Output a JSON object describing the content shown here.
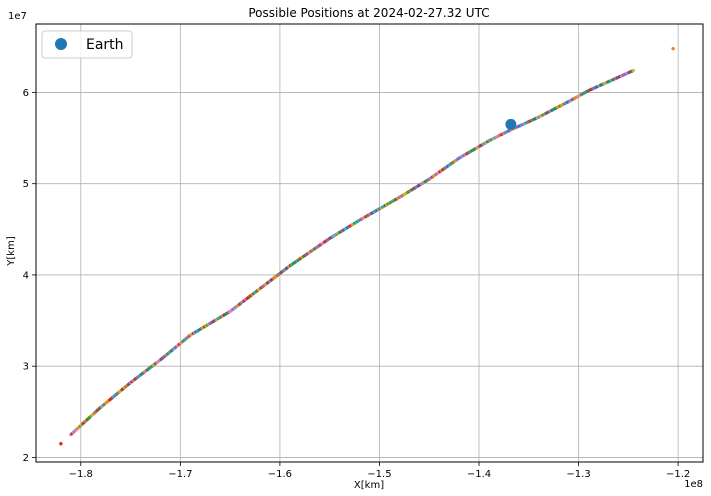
{
  "chart_data": {
    "type": "scatter",
    "title": "Possible Positions at 2024-02-27.32 UTC",
    "xlabel": "X[km]",
    "ylabel": "Y[km]",
    "x_offset_text": "1e8",
    "y_offset_text": "1e7",
    "xlim": [
      -1.845,
      -1.175
    ],
    "ylim": [
      1.95,
      6.75
    ],
    "x_ticks": [
      -1.8,
      -1.7,
      -1.6,
      -1.5,
      -1.4,
      -1.3,
      -1.2
    ],
    "x_tick_labels": [
      "−1.8",
      "−1.7",
      "−1.6",
      "−1.5",
      "−1.4",
      "−1.3",
      "−1.2"
    ],
    "y_ticks": [
      2,
      3,
      4,
      5,
      6
    ],
    "y_tick_labels": [
      "2",
      "3",
      "4",
      "5",
      "6"
    ],
    "grid": true,
    "legend": {
      "placement": "upper-left",
      "entries": [
        {
          "label": "Earth",
          "color": "#1f77b4",
          "marker": "circle"
        }
      ]
    },
    "series": [
      {
        "name": "Earth",
        "color": "#1f77b4",
        "marker_size": "large",
        "points": [
          [
            -1.368,
            5.65
          ]
        ]
      },
      {
        "marker_size": "small",
        "palette": [
          "#1f77b4",
          "#ff7f0e",
          "#2ca02c",
          "#d62728",
          "#9467bd",
          "#8c564b",
          "#e377c2",
          "#7f7f7f",
          "#bcbd22",
          "#17becf"
        ],
        "isolated_points": [
          [
            -1.82,
            2.15
          ],
          [
            -1.205,
            6.48
          ]
        ],
        "trajectory_path": [
          [
            -1.81,
            2.25
          ],
          [
            -1.78,
            2.55
          ],
          [
            -1.75,
            2.82
          ],
          [
            -1.72,
            3.07
          ],
          [
            -1.69,
            3.34
          ],
          [
            -1.65,
            3.6
          ],
          [
            -1.62,
            3.85
          ],
          [
            -1.59,
            4.1
          ],
          [
            -1.55,
            4.4
          ],
          [
            -1.52,
            4.6
          ],
          [
            -1.48,
            4.85
          ],
          [
            -1.45,
            5.05
          ],
          [
            -1.42,
            5.28
          ],
          [
            -1.39,
            5.47
          ],
          [
            -1.37,
            5.58
          ],
          [
            -1.34,
            5.73
          ],
          [
            -1.31,
            5.9
          ],
          [
            -1.29,
            6.02
          ],
          [
            -1.245,
            6.24
          ]
        ],
        "point_count": 420
      }
    ]
  }
}
